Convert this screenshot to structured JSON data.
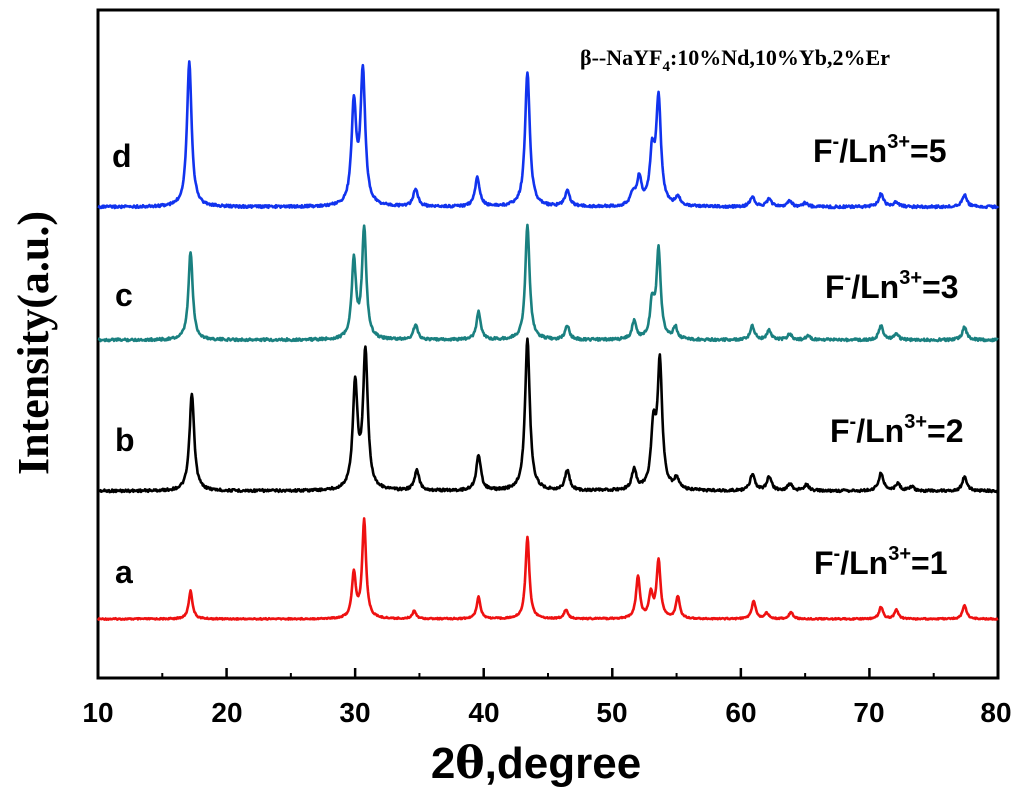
{
  "chart_data": {
    "type": "line",
    "xlabel_num": "2",
    "xlabel_theta": "θ",
    "xlabel_rest": ",degree",
    "ylabel": "Intensity(a.u.)",
    "xlim": [
      10,
      80
    ],
    "x_ticks": [
      "10",
      "20",
      "30",
      "40",
      "50",
      "60",
      "70",
      "80"
    ],
    "grid": false,
    "annotation": {
      "prefix": "β--NaYF",
      "subscript": "4",
      "suffix": ":10%Nd,10%Yb,2%Er"
    },
    "series": [
      {
        "letter": "a",
        "ratio_pre": "F",
        "ratio_sup1": "-",
        "ratio_mid": "/Ln",
        "ratio_sup2": "3+",
        "ratio_post": "=1",
        "color": "#ee1111",
        "peaks": [
          [
            17.2,
            28
          ],
          [
            29.9,
            45
          ],
          [
            30.7,
            98
          ],
          [
            34.6,
            8
          ],
          [
            39.6,
            22
          ],
          [
            43.4,
            82
          ],
          [
            46.4,
            9
          ],
          [
            52.0,
            42
          ],
          [
            53.0,
            24
          ],
          [
            53.6,
            58
          ],
          [
            55.1,
            22
          ],
          [
            61.0,
            18
          ],
          [
            62.0,
            6
          ],
          [
            63.9,
            7
          ],
          [
            70.9,
            12
          ],
          [
            72.1,
            9
          ],
          [
            77.4,
            14
          ]
        ]
      },
      {
        "letter": "b",
        "ratio_pre": "F",
        "ratio_sup1": "-",
        "ratio_mid": "/Ln",
        "ratio_sup2": "3+",
        "ratio_post": "=2",
        "color": "#000000",
        "peaks": [
          [
            17.3,
            97
          ],
          [
            30.0,
            105
          ],
          [
            30.8,
            138
          ],
          [
            34.8,
            20
          ],
          [
            39.6,
            35
          ],
          [
            43.4,
            152
          ],
          [
            46.5,
            20
          ],
          [
            51.7,
            20
          ],
          [
            53.2,
            60
          ],
          [
            53.7,
            125
          ],
          [
            55.0,
            11
          ],
          [
            60.9,
            16
          ],
          [
            62.2,
            14
          ],
          [
            63.8,
            7
          ],
          [
            65.1,
            6
          ],
          [
            70.9,
            18
          ],
          [
            72.2,
            7
          ],
          [
            73.3,
            4
          ],
          [
            77.4,
            14
          ]
        ]
      },
      {
        "letter": "c",
        "ratio_pre": "F",
        "ratio_sup1": "-",
        "ratio_mid": "/Ln",
        "ratio_sup2": "3+",
        "ratio_post": "=3",
        "color": "#1a8080",
        "peaks": [
          [
            17.2,
            88
          ],
          [
            29.9,
            78
          ],
          [
            30.7,
            110
          ],
          [
            34.7,
            15
          ],
          [
            39.6,
            28
          ],
          [
            43.4,
            115
          ],
          [
            46.5,
            14
          ],
          [
            51.7,
            18
          ],
          [
            53.1,
            35
          ],
          [
            53.6,
            88
          ],
          [
            54.9,
            12
          ],
          [
            60.9,
            14
          ],
          [
            62.2,
            10
          ],
          [
            63.8,
            6
          ],
          [
            65.2,
            4
          ],
          [
            70.9,
            14
          ],
          [
            72.1,
            6
          ],
          [
            77.4,
            13
          ]
        ]
      },
      {
        "letter": "d",
        "ratio_pre": "F",
        "ratio_sup1": "-",
        "ratio_mid": "/Ln",
        "ratio_sup2": "3+",
        "ratio_post": "=5",
        "color": "#1133ee",
        "peaks": [
          [
            17.1,
            145
          ],
          [
            29.9,
            100
          ],
          [
            30.6,
            133
          ],
          [
            34.7,
            17
          ],
          [
            39.5,
            29
          ],
          [
            43.4,
            135
          ],
          [
            46.5,
            16
          ],
          [
            51.6,
            12
          ],
          [
            52.1,
            27
          ],
          [
            53.1,
            50
          ],
          [
            53.6,
            105
          ],
          [
            55.1,
            9
          ],
          [
            60.9,
            10
          ],
          [
            62.2,
            8
          ],
          [
            63.8,
            6
          ],
          [
            65.0,
            4
          ],
          [
            70.9,
            13
          ],
          [
            72.1,
            5
          ],
          [
            77.4,
            12
          ]
        ]
      }
    ]
  }
}
